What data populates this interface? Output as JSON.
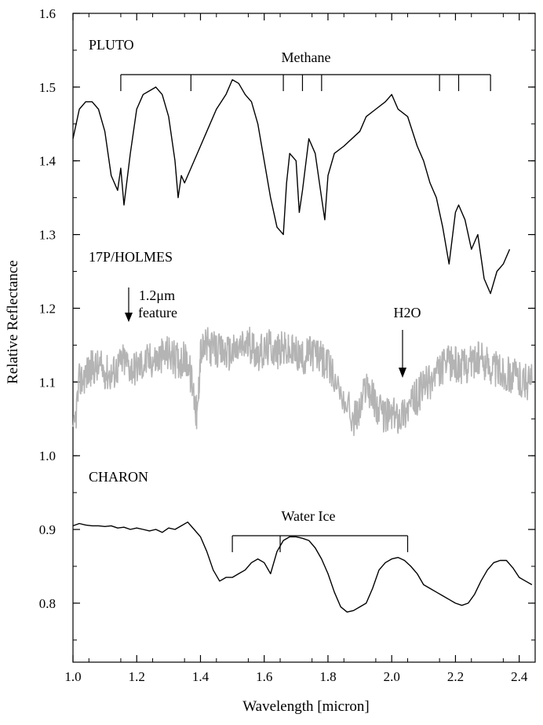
{
  "chart_data": {
    "type": "line",
    "xlabel": "Wavelength [micron]",
    "ylabel": "Relative Reflectance",
    "xlim": [
      1.0,
      2.45
    ],
    "ylim": [
      0.72,
      1.6
    ],
    "x_ticks": [
      1.0,
      1.2,
      1.4,
      1.6,
      1.8,
      2.0,
      2.2,
      2.4
    ],
    "x_tick_labels": [
      "1.0",
      "1.2",
      "1.4",
      "1.6",
      "1.8",
      "2.0",
      "2.2",
      "2.4"
    ],
    "y_ticks": [
      0.8,
      0.9,
      1.0,
      1.1,
      1.2,
      1.3,
      1.4,
      1.5,
      1.6
    ],
    "y_tick_labels": [
      "0.8",
      "0.9",
      "1.0",
      "1.1",
      "1.2",
      "1.3",
      "1.4",
      "1.5",
      "1.6"
    ],
    "grid": false,
    "series": [
      {
        "name": "PLUTO",
        "color": "#000000",
        "x": [
          1.0,
          1.02,
          1.04,
          1.06,
          1.08,
          1.1,
          1.12,
          1.14,
          1.15,
          1.16,
          1.18,
          1.2,
          1.22,
          1.24,
          1.26,
          1.28,
          1.3,
          1.32,
          1.33,
          1.34,
          1.35,
          1.4,
          1.42,
          1.45,
          1.48,
          1.5,
          1.52,
          1.54,
          1.56,
          1.58,
          1.6,
          1.62,
          1.64,
          1.66,
          1.67,
          1.68,
          1.7,
          1.71,
          1.72,
          1.74,
          1.76,
          1.78,
          1.79,
          1.8,
          1.82,
          1.85,
          1.9,
          1.92,
          1.95,
          1.98,
          2.0,
          2.02,
          2.05,
          2.08,
          2.1,
          2.12,
          2.14,
          2.16,
          2.18,
          2.2,
          2.21,
          2.23,
          2.25,
          2.27,
          2.29,
          2.31,
          2.33,
          2.35,
          2.37
        ],
        "y": [
          1.43,
          1.47,
          1.48,
          1.48,
          1.47,
          1.44,
          1.38,
          1.36,
          1.39,
          1.34,
          1.41,
          1.47,
          1.49,
          1.495,
          1.5,
          1.49,
          1.46,
          1.4,
          1.35,
          1.38,
          1.37,
          1.42,
          1.44,
          1.47,
          1.49,
          1.51,
          1.505,
          1.49,
          1.48,
          1.45,
          1.4,
          1.35,
          1.31,
          1.3,
          1.37,
          1.41,
          1.4,
          1.33,
          1.36,
          1.43,
          1.41,
          1.35,
          1.32,
          1.38,
          1.41,
          1.42,
          1.44,
          1.46,
          1.47,
          1.48,
          1.49,
          1.47,
          1.46,
          1.42,
          1.4,
          1.37,
          1.35,
          1.31,
          1.26,
          1.33,
          1.34,
          1.32,
          1.28,
          1.3,
          1.24,
          1.22,
          1.25,
          1.26,
          1.28
        ]
      },
      {
        "name": "17P/HOLMES",
        "color": "#b4b4b4",
        "x": [
          1.0,
          1.02,
          1.04,
          1.06,
          1.08,
          1.1,
          1.12,
          1.14,
          1.16,
          1.18,
          1.2,
          1.22,
          1.24,
          1.26,
          1.28,
          1.3,
          1.32,
          1.34,
          1.36,
          1.38,
          1.39,
          1.4,
          1.42,
          1.44,
          1.46,
          1.48,
          1.5,
          1.52,
          1.54,
          1.56,
          1.58,
          1.6,
          1.62,
          1.64,
          1.66,
          1.68,
          1.7,
          1.72,
          1.74,
          1.76,
          1.78,
          1.8,
          1.84,
          1.88,
          1.9,
          1.92,
          1.94,
          1.96,
          1.98,
          2.0,
          2.02,
          2.04,
          2.06,
          2.08,
          2.1,
          2.12,
          2.14,
          2.16,
          2.18,
          2.2,
          2.22,
          2.24,
          2.26,
          2.28,
          2.3,
          2.32,
          2.34,
          2.36,
          2.38,
          2.4,
          2.42,
          2.44
        ],
        "y": [
          1.02,
          1.1,
          1.11,
          1.12,
          1.12,
          1.115,
          1.11,
          1.12,
          1.13,
          1.12,
          1.12,
          1.125,
          1.13,
          1.13,
          1.135,
          1.14,
          1.13,
          1.13,
          1.13,
          1.08,
          1.05,
          1.14,
          1.15,
          1.145,
          1.14,
          1.14,
          1.14,
          1.145,
          1.15,
          1.15,
          1.14,
          1.14,
          1.15,
          1.14,
          1.145,
          1.14,
          1.14,
          1.13,
          1.14,
          1.14,
          1.13,
          1.12,
          1.09,
          1.05,
          1.06,
          1.1,
          1.08,
          1.06,
          1.055,
          1.055,
          1.055,
          1.06,
          1.07,
          1.08,
          1.095,
          1.1,
          1.11,
          1.12,
          1.125,
          1.125,
          1.12,
          1.125,
          1.13,
          1.13,
          1.125,
          1.12,
          1.115,
          1.11,
          1.11,
          1.105,
          1.1,
          1.1
        ]
      },
      {
        "name": "CHARON",
        "color": "#000000",
        "x": [
          1.0,
          1.02,
          1.04,
          1.06,
          1.08,
          1.1,
          1.12,
          1.14,
          1.16,
          1.18,
          1.2,
          1.22,
          1.24,
          1.26,
          1.28,
          1.3,
          1.32,
          1.34,
          1.36,
          1.38,
          1.4,
          1.42,
          1.44,
          1.46,
          1.48,
          1.5,
          1.52,
          1.54,
          1.56,
          1.58,
          1.6,
          1.62,
          1.64,
          1.66,
          1.68,
          1.7,
          1.72,
          1.74,
          1.76,
          1.78,
          1.8,
          1.82,
          1.84,
          1.86,
          1.88,
          1.9,
          1.92,
          1.94,
          1.96,
          1.98,
          2.0,
          2.02,
          2.04,
          2.06,
          2.08,
          2.1,
          2.12,
          2.14,
          2.16,
          2.18,
          2.2,
          2.22,
          2.24,
          2.26,
          2.28,
          2.3,
          2.32,
          2.34,
          2.36,
          2.38,
          2.4,
          2.42,
          2.44
        ],
        "y": [
          0.905,
          0.908,
          0.906,
          0.905,
          0.905,
          0.904,
          0.905,
          0.902,
          0.903,
          0.9,
          0.902,
          0.9,
          0.898,
          0.9,
          0.896,
          0.902,
          0.9,
          0.905,
          0.91,
          0.9,
          0.89,
          0.87,
          0.845,
          0.83,
          0.835,
          0.835,
          0.84,
          0.845,
          0.855,
          0.86,
          0.855,
          0.84,
          0.87,
          0.885,
          0.89,
          0.89,
          0.888,
          0.885,
          0.875,
          0.86,
          0.84,
          0.815,
          0.795,
          0.788,
          0.79,
          0.795,
          0.8,
          0.82,
          0.845,
          0.855,
          0.86,
          0.862,
          0.858,
          0.85,
          0.84,
          0.825,
          0.82,
          0.815,
          0.81,
          0.805,
          0.8,
          0.797,
          0.8,
          0.812,
          0.83,
          0.845,
          0.855,
          0.858,
          0.858,
          0.848,
          0.835,
          0.83,
          0.825
        ]
      }
    ],
    "annotations": {
      "pluto_label": "PLUTO",
      "holmes_label": "17P/HOLMES",
      "charon_label": "CHARON",
      "methane_label": "Methane",
      "water_ice_label": "Water Ice",
      "feature_label_1": "1.2μm",
      "feature_label_2": "feature",
      "h2o_label": "H2O",
      "methane_bands": [
        1.15,
        1.37,
        1.66,
        1.72,
        1.78,
        2.15,
        2.21,
        2.31
      ],
      "water_ice_bands": [
        1.5,
        1.65,
        2.05
      ]
    }
  }
}
